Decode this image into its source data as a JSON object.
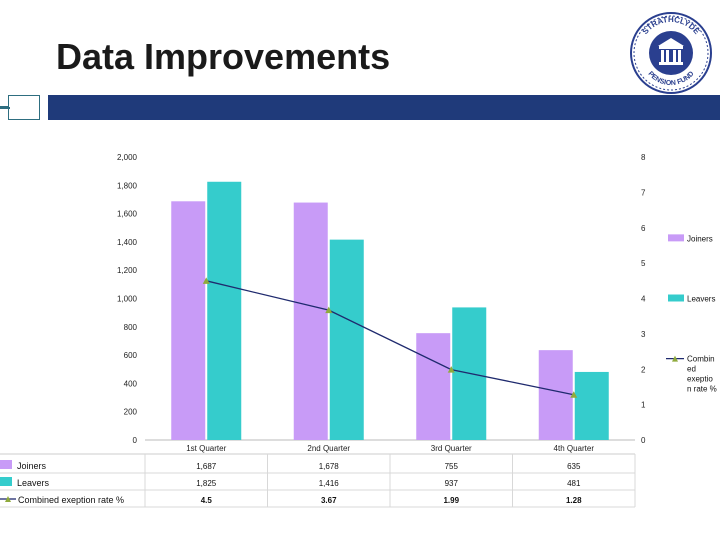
{
  "slide": {
    "title": "Data Improvements"
  },
  "logo": {
    "text_top": "STRATHCLYDE",
    "text_bottom": "PENSION FUND"
  },
  "colors": {
    "joiners": "#c89bf7",
    "leavers": "#35cccc",
    "line": "#1f2a6e",
    "marker": "#8faa3c",
    "band": "#1f3a7a"
  },
  "chart_data": {
    "type": "bar",
    "categories": [
      "1st Quarter",
      "2nd Quarter",
      "3rd Quarter",
      "4th Quarter"
    ],
    "series": [
      {
        "name": "Joiners",
        "kind": "bar",
        "axis": "left",
        "values": [
          1687,
          1678,
          755,
          635
        ],
        "labels": [
          "1,687",
          "1,678",
          "755",
          "635"
        ]
      },
      {
        "name": "Leavers",
        "kind": "bar",
        "axis": "left",
        "values": [
          1825,
          1416,
          937,
          481
        ],
        "labels": [
          "1,825",
          "1,416",
          "937",
          "481"
        ]
      },
      {
        "name": "Combined exeption rate %",
        "legend_name": "Combined exeption rate %",
        "kind": "line",
        "axis": "right",
        "values": [
          4.5,
          3.67,
          1.99,
          1.28
        ],
        "labels": [
          "4.5",
          "3.67",
          "1.99",
          "1.28"
        ]
      }
    ],
    "ylim": [
      0,
      2000
    ],
    "ylim_right": [
      0,
      8
    ],
    "left_ticks": [
      "0",
      "200",
      "400",
      "600",
      "800",
      "1,000",
      "1,200",
      "1,400",
      "1,600",
      "1,800",
      "2,000"
    ],
    "right_ticks": [
      "0",
      "1",
      "2",
      "3",
      "4",
      "5",
      "6",
      "7",
      "8"
    ],
    "legend_labels": [
      "Joiners",
      "Leavers",
      "Combin",
      "ed",
      "exeptio",
      "n rate %"
    ],
    "legend_position": "right",
    "data_table": true
  }
}
